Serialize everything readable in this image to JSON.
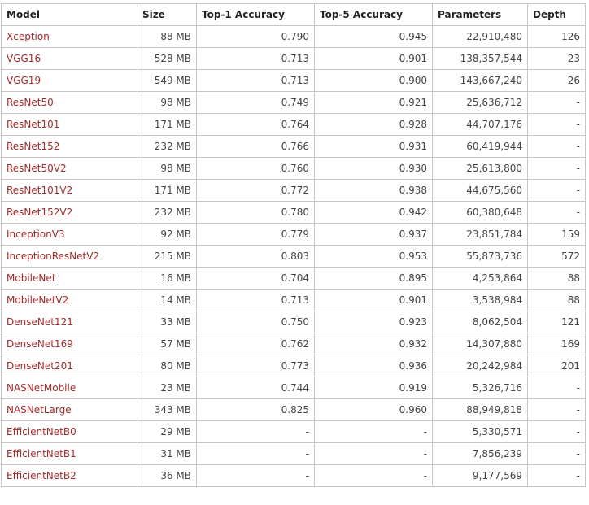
{
  "table": {
    "headers": [
      "Model",
      "Size",
      "Top-1 Accuracy",
      "Top-5 Accuracy",
      "Parameters",
      "Depth"
    ],
    "rows": [
      [
        "Xception",
        "88 MB",
        "0.790",
        "0.945",
        "22,910,480",
        "126"
      ],
      [
        "VGG16",
        "528 MB",
        "0.713",
        "0.901",
        "138,357,544",
        "23"
      ],
      [
        "VGG19",
        "549 MB",
        "0.713",
        "0.900",
        "143,667,240",
        "26"
      ],
      [
        "ResNet50",
        "98 MB",
        "0.749",
        "0.921",
        "25,636,712",
        "-"
      ],
      [
        "ResNet101",
        "171 MB",
        "0.764",
        "0.928",
        "44,707,176",
        "-"
      ],
      [
        "ResNet152",
        "232 MB",
        "0.766",
        "0.931",
        "60,419,944",
        "-"
      ],
      [
        "ResNet50V2",
        "98 MB",
        "0.760",
        "0.930",
        "25,613,800",
        "-"
      ],
      [
        "ResNet101V2",
        "171 MB",
        "0.772",
        "0.938",
        "44,675,560",
        "-"
      ],
      [
        "ResNet152V2",
        "232 MB",
        "0.780",
        "0.942",
        "60,380,648",
        "-"
      ],
      [
        "InceptionV3",
        "92 MB",
        "0.779",
        "0.937",
        "23,851,784",
        "159"
      ],
      [
        "InceptionResNetV2",
        "215 MB",
        "0.803",
        "0.953",
        "55,873,736",
        "572"
      ],
      [
        "MobileNet",
        "16 MB",
        "0.704",
        "0.895",
        "4,253,864",
        "88"
      ],
      [
        "MobileNetV2",
        "14 MB",
        "0.713",
        "0.901",
        "3,538,984",
        "88"
      ],
      [
        "DenseNet121",
        "33 MB",
        "0.750",
        "0.923",
        "8,062,504",
        "121"
      ],
      [
        "DenseNet169",
        "57 MB",
        "0.762",
        "0.932",
        "14,307,880",
        "169"
      ],
      [
        "DenseNet201",
        "80 MB",
        "0.773",
        "0.936",
        "20,242,984",
        "201"
      ],
      [
        "NASNetMobile",
        "23 MB",
        "0.744",
        "0.919",
        "5,326,716",
        "-"
      ],
      [
        "NASNetLarge",
        "343 MB",
        "0.825",
        "0.960",
        "88,949,818",
        "-"
      ],
      [
        "EfficientNetB0",
        "29 MB",
        "-",
        "-",
        "5,330,571",
        "-"
      ],
      [
        "EfficientNetB1",
        "31 MB",
        "-",
        "-",
        "7,856,239",
        "-"
      ],
      [
        "EfficientNetB2",
        "36 MB",
        "-",
        "-",
        "9,177,569",
        "-"
      ]
    ]
  },
  "colors": {
    "link": "#a52a2a",
    "border": "#c6c6c6",
    "text": "#333333"
  }
}
